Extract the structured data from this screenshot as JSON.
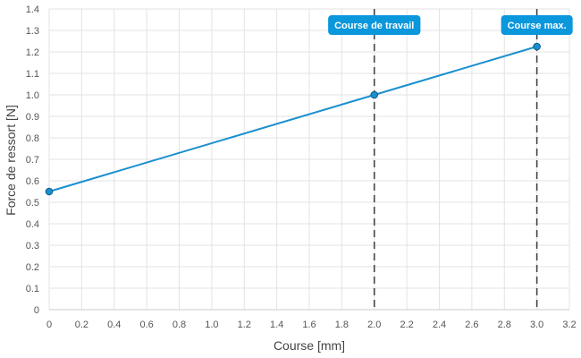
{
  "chart_data": {
    "type": "line",
    "xlabel": "Course [mm]",
    "ylabel": "Force de ressort [N]",
    "xlim": [
      0,
      3.2
    ],
    "ylim": [
      0,
      1.4
    ],
    "x_ticks": [
      "0",
      "0.2",
      "0.4",
      "0.6",
      "0.8",
      "1.0",
      "1.2",
      "1.4",
      "1.6",
      "1.8",
      "2.0",
      "2.2",
      "2.4",
      "2.6",
      "2.8",
      "3.0",
      "3.2"
    ],
    "y_ticks": [
      "0",
      "0.1",
      "0.2",
      "0.3",
      "0.4",
      "0.5",
      "0.6",
      "0.7",
      "0.8",
      "0.9",
      "1.0",
      "1.1",
      "1.2",
      "1.3",
      "1.4"
    ],
    "grid": true,
    "series": [
      {
        "x": [
          0,
          2.0,
          3.0
        ],
        "y": [
          0.55,
          1.0,
          1.225
        ],
        "color": "#1a8fcf"
      }
    ],
    "annotations": [
      {
        "label": "Course de travail",
        "x": 2.0
      },
      {
        "label": "Course max.",
        "x": 3.0
      }
    ],
    "colors": {
      "line": "#1a8fcf",
      "badge": "#0a97dc",
      "marker_line": "#444444",
      "grid": "#e3e3e3"
    }
  }
}
